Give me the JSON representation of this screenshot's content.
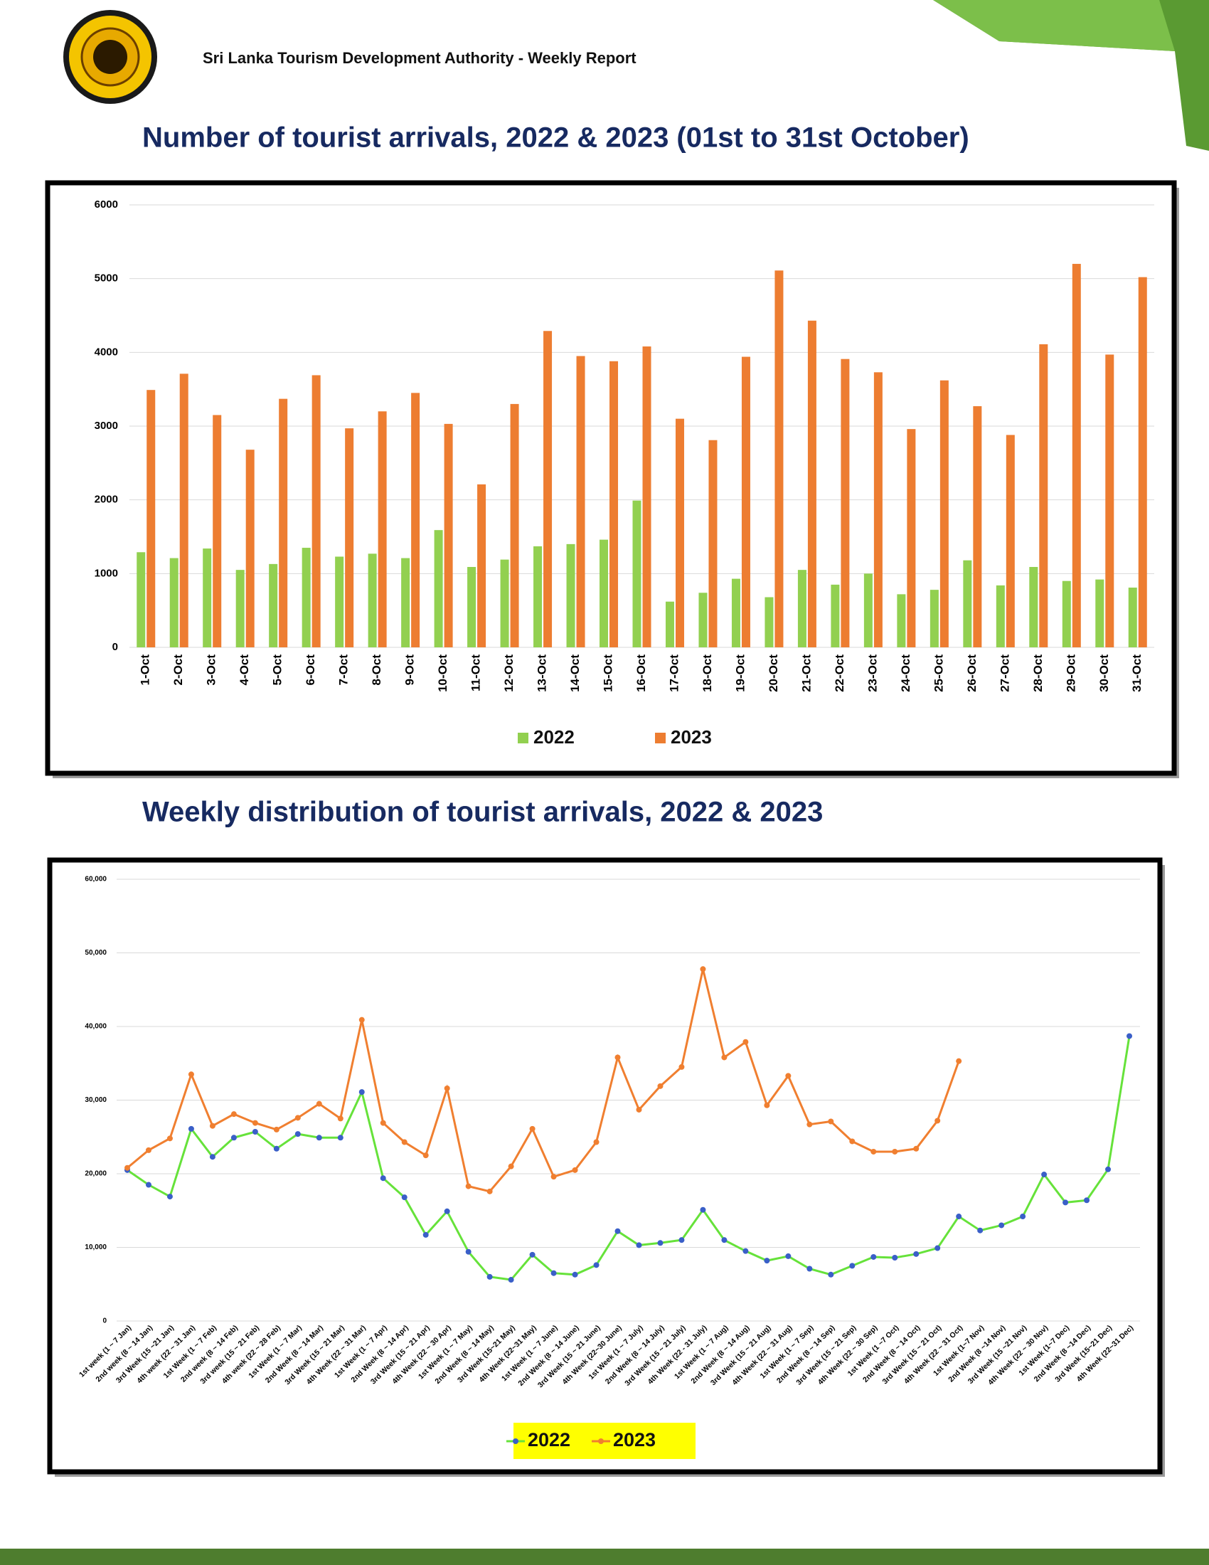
{
  "header": {
    "title": "Sri Lanka Tourism Development Authority - Weekly Report"
  },
  "chart_data": [
    {
      "type": "bar",
      "title": "Number of tourist arrivals, 2022 & 2023 (01st to 31st October)",
      "categories": [
        "1-Oct",
        "2-Oct",
        "3-Oct",
        "4-Oct",
        "5-Oct",
        "6-Oct",
        "7-Oct",
        "8-Oct",
        "9-Oct",
        "10-Oct",
        "11-Oct",
        "12-Oct",
        "13-Oct",
        "14-Oct",
        "15-Oct",
        "16-Oct",
        "17-Oct",
        "18-Oct",
        "19-Oct",
        "20-Oct",
        "21-Oct",
        "22-Oct",
        "23-Oct",
        "24-Oct",
        "25-Oct",
        "26-Oct",
        "27-Oct",
        "28-Oct",
        "29-Oct",
        "30-Oct",
        "31-Oct"
      ],
      "series": [
        {
          "name": "2022",
          "color": "#92d050",
          "values": [
            1290,
            1210,
            1340,
            1050,
            1130,
            1350,
            1230,
            1270,
            1210,
            1590,
            1090,
            1190,
            1370,
            1400,
            1460,
            1990,
            620,
            740,
            930,
            680,
            1050,
            850,
            1000,
            720,
            780,
            1180,
            840,
            1090,
            900,
            920,
            810
          ]
        },
        {
          "name": "2023",
          "color": "#ed7d31",
          "values": [
            3490,
            3710,
            3150,
            2680,
            3370,
            3690,
            2970,
            3200,
            3450,
            3030,
            2210,
            3300,
            4290,
            3950,
            3880,
            4080,
            3100,
            2810,
            3940,
            5110,
            4430,
            3910,
            3730,
            2960,
            3620,
            3270,
            2880,
            4110,
            5200,
            3970,
            5020
          ]
        }
      ],
      "ylim": [
        0,
        6000
      ],
      "yticks": [
        0,
        1000,
        2000,
        3000,
        4000,
        5000,
        6000
      ],
      "grid": true,
      "legend": "bottom"
    },
    {
      "type": "line",
      "title": "Weekly distribution of tourist arrivals, 2022 & 2023",
      "categories": [
        "1st week (1 ~ 7 Jan)",
        "2nd week (8 ~ 14 Jan)",
        "3rd Week (15 ~21 Jan)",
        "4th week (22 ~ 31 Jan)",
        "1st Week (1 ~ 7 Feb)",
        "2nd week (8 ~ 14 Feb)",
        "3rd week (15 ~ 21 Feb)",
        "4th week (22 ~ 28 Feb)",
        "1st Week (1 ~ 7 Mar)",
        "2nd Week (8 ~ 14 Mar)",
        "3rd Week (15 ~ 21 Mar)",
        "4th Week (22 ~ 31 Mar)",
        "1st Week (1 ~ 7 Apr)",
        "2nd Week (8 ~ 14 Apr)",
        "3rd Week (15 ~ 21 Apr)",
        "4th Week (22 ~ 30 Apr)",
        "1st Week (1 ~ 7 May)",
        "2nd Week (8 ~ 14 May)",
        "3rd Week (15~21 May)",
        "4th Week (22~31 May)",
        "1st Week (1 ~ 7 June)",
        "2nd Week (8 ~ 14 June)",
        "3rd Week (15 ~ 21 June)",
        "4th Week (22~30 June)",
        "1st Week (1 ~ 7 July)",
        "2nd Week (8 ~ 14 July)",
        "3rd Week (15 ~ 21 July)",
        "4th Week (22 - 31 July)",
        "1st Week (1 ~ 7 Aug)",
        "2nd Week (8 ~ 14 Aug)",
        "3rd Week (15 ~ 21 Aug)",
        "4th Week (22 ~ 31 Aug)",
        "1st Week (1 ~ 7 Sep)",
        "2nd Week (8 ~ 14 Sep)",
        "3rd Week (15 ~ 21 Sep)",
        "4th Week (22 ~ 30 Sep)",
        "1st Week (1 ~7 Oct)",
        "2nd Week (8 ~ 14 Oct)",
        "3rd Week (15 ~ 21 Oct)",
        "4th Week (22 ~ 31 Oct)",
        "1st Week (1~7 Nov)",
        "2nd Week (8 ~14 Nov)",
        "3rd Week (15 ~21 Nov)",
        "4th Week (22 ~ 30 Nov)",
        "1st Week (1~7 Dec)",
        "2nd Week (8 ~14 Dec)",
        "3rd Week (15~21 Dec)",
        "4th Week (22~31 Dec)"
      ],
      "series": [
        {
          "name": "2022",
          "color": "#66e23a",
          "marker": "#3a5fc8",
          "values": [
            20500,
            18500,
            16900,
            26100,
            22300,
            24900,
            25700,
            23400,
            25400,
            24900,
            24900,
            31100,
            19400,
            16800,
            11700,
            14900,
            9400,
            6000,
            5600,
            9000,
            6500,
            6300,
            7600,
            12200,
            10300,
            10600,
            11000,
            15100,
            11000,
            9500,
            8200,
            8800,
            7100,
            6300,
            7500,
            8700,
            8600,
            9100,
            9900,
            14200,
            12300,
            13000,
            14200,
            19900,
            16100,
            16400,
            20600,
            38700
          ]
        },
        {
          "name": "2023",
          "color": "#f07f30",
          "marker": "#f07f30",
          "values": [
            20800,
            23200,
            24800,
            33500,
            26500,
            28100,
            26900,
            26000,
            27600,
            29500,
            27500,
            40900,
            26900,
            24300,
            22500,
            31600,
            18300,
            17600,
            21000,
            26100,
            19600,
            20500,
            24300,
            35800,
            28700,
            31900,
            34500,
            47800,
            35800,
            37900,
            29300,
            33300,
            26700,
            27100,
            24400,
            23000,
            23000,
            23400,
            27200,
            35300,
            null,
            null,
            null,
            null,
            null,
            null,
            null,
            null
          ]
        }
      ],
      "ylim": [
        0,
        60000
      ],
      "yticks": [
        0,
        {
          "value": 10000,
          "label": "10,000"
        },
        {
          "value": 20000,
          "label": "20,000"
        },
        {
          "value": 30000,
          "label": "30,000"
        },
        {
          "value": 40000,
          "label": "40,000"
        },
        {
          "value": 50000,
          "label": "50,000"
        },
        {
          "value": 60000,
          "label": "60,000"
        }
      ],
      "grid": true,
      "legend": "bottom",
      "legend_background": "#ffff00"
    }
  ]
}
